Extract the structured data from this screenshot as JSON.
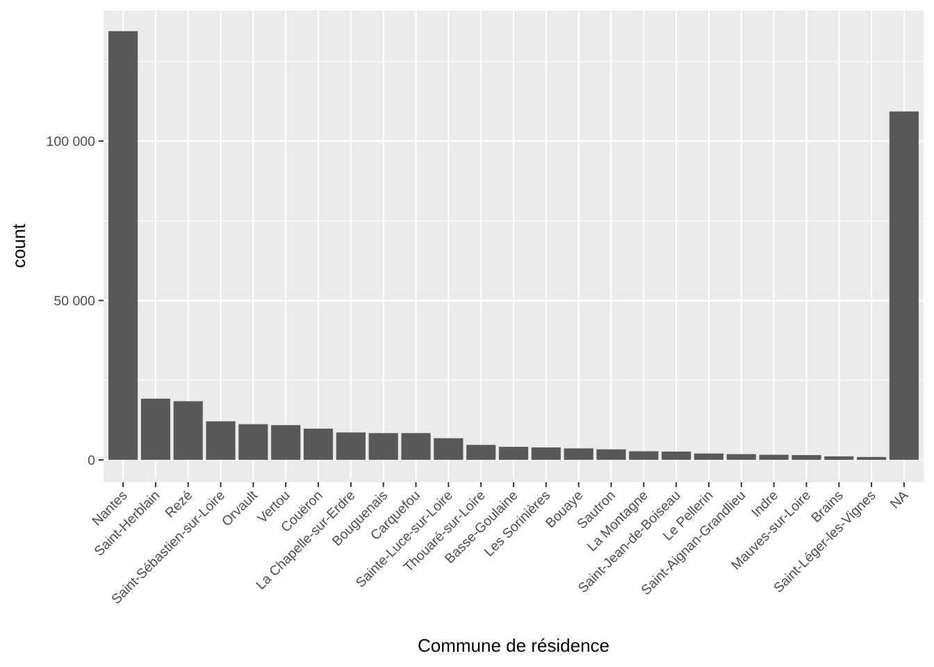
{
  "chart_data": {
    "type": "bar",
    "title": "",
    "xlabel": "Commune de résidence",
    "ylabel": "count",
    "categories": [
      "Nantes",
      "Saint-Herblain",
      "Rezé",
      "Saint-Sébastien-sur-Loire",
      "Orvault",
      "Vertou",
      "Couëron",
      "La Chapelle-sur-Erdre",
      "Bouguenais",
      "Carquefou",
      "Sainte-Luce-sur-Loire",
      "Thouaré-sur-Loire",
      "Basse-Goulaine",
      "Les Sorinières",
      "Bouaye",
      "Sautron",
      "La Montagne",
      "Saint-Jean-de-Boiseau",
      "Le Pellerin",
      "Saint-Aignan-Grandlieu",
      "Indre",
      "Mauves-sur-Loire",
      "Brains",
      "Saint-Léger-les-Vignes",
      "NA"
    ],
    "values": [
      134500,
      19200,
      18400,
      12100,
      11200,
      10900,
      9800,
      8600,
      8400,
      8400,
      6800,
      4700,
      4100,
      3900,
      3600,
      3300,
      2700,
      2600,
      2000,
      1800,
      1600,
      1500,
      1100,
      900,
      109300
    ],
    "ylim": [
      -7000,
      141000
    ],
    "y_ticks": [
      {
        "value": 0,
        "label": "0"
      },
      {
        "value": 50000,
        "label": "50 000"
      },
      {
        "value": 100000,
        "label": "100 000"
      }
    ],
    "y_minor_ticks": [
      25000,
      75000,
      125000
    ],
    "grid": true,
    "colors": {
      "bar": "#595959",
      "panel": "#ebebeb",
      "grid": "#ffffff",
      "tick_text": "#4d4d4d",
      "title_text": "#000000"
    }
  }
}
